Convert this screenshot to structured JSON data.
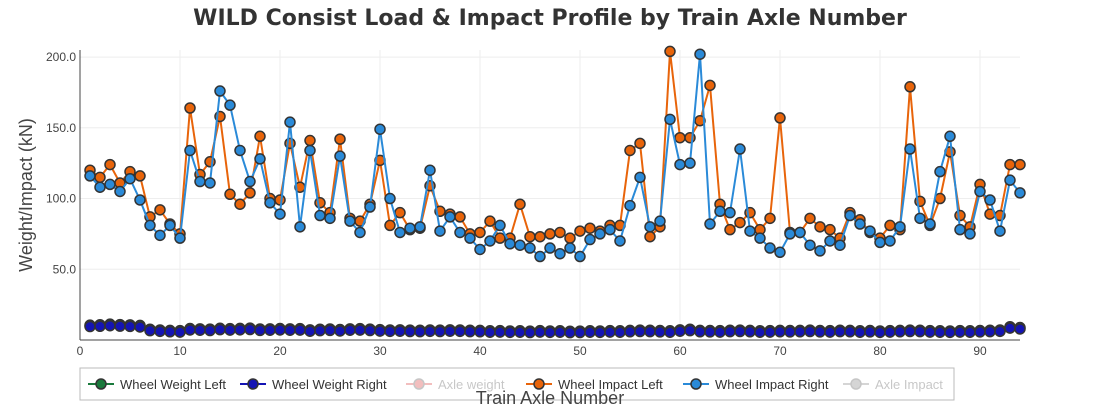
{
  "chart_data": {
    "type": "line",
    "title": "WILD Consist Load & Impact Profile by Train Axle Number",
    "xlabel": "Train Axle Number",
    "ylabel": "Weight/Impact (kN)",
    "xlim": [
      0,
      94
    ],
    "ylim": [
      0,
      205
    ],
    "x_ticks": [
      "0",
      "10",
      "20",
      "30",
      "40",
      "50",
      "60",
      "70",
      "80",
      "90"
    ],
    "y_ticks": [
      "50.0",
      "100.0",
      "150.0",
      "200.0"
    ],
    "grid": true,
    "legend_position": "bottom",
    "series": [
      {
        "name": "Wheel Weight Left",
        "color": "#1a7a3c",
        "visible": true,
        "values": [
          10.5,
          10.8,
          11.2,
          10.9,
          10.7,
          10.3,
          7.6,
          7.1,
          6.8,
          6.6,
          8.1,
          7.9,
          7.7,
          8.3,
          8.0,
          8.2,
          8.4,
          7.8,
          7.9,
          8.1,
          7.9,
          8.0,
          7.2,
          7.6,
          7.8,
          7.4,
          7.9,
          8.0,
          7.7,
          7.3,
          7.1,
          7.2,
          7.0,
          6.9,
          7.1,
          7.0,
          7.2,
          7.1,
          6.9,
          6.8,
          6.5,
          6.6,
          6.4,
          6.5,
          6.3,
          6.6,
          6.4,
          6.5,
          6.2,
          6.3,
          6.5,
          6.4,
          6.6,
          6.5,
          6.8,
          7.0,
          6.9,
          6.7,
          6.5,
          7.2,
          7.6,
          6.8,
          6.7,
          6.6,
          6.9,
          7.0,
          6.8,
          6.5,
          6.6,
          6.8,
          6.7,
          6.8,
          7.0,
          6.7,
          6.6,
          6.9,
          6.8,
          6.5,
          6.7,
          6.4,
          6.6,
          6.8,
          7.0,
          6.9,
          6.6,
          6.5,
          6.4,
          6.6,
          6.5,
          6.7,
          6.9,
          7.1,
          9.4,
          8.8
        ]
      },
      {
        "name": "Wheel Weight Right",
        "color": "#1414b4",
        "visible": true,
        "values": [
          9.5,
          9.7,
          10.1,
          9.8,
          9.6,
          9.2,
          6.6,
          6.1,
          5.8,
          5.6,
          7.1,
          6.9,
          6.7,
          7.3,
          7.0,
          7.2,
          7.4,
          6.8,
          6.9,
          7.1,
          6.9,
          7.0,
          6.2,
          6.6,
          6.8,
          6.4,
          6.9,
          7.0,
          6.7,
          6.3,
          6.1,
          6.2,
          6.0,
          5.9,
          6.1,
          6.0,
          6.2,
          6.1,
          5.9,
          5.8,
          5.5,
          5.6,
          5.4,
          5.5,
          5.3,
          5.6,
          5.4,
          5.5,
          5.2,
          5.3,
          5.5,
          5.4,
          5.6,
          5.5,
          5.8,
          6.0,
          5.9,
          5.7,
          5.5,
          6.2,
          6.6,
          5.8,
          5.7,
          5.6,
          5.9,
          6.0,
          5.8,
          5.5,
          5.6,
          5.8,
          5.7,
          5.8,
          6.0,
          5.7,
          5.6,
          5.9,
          5.8,
          5.5,
          5.7,
          5.4,
          5.6,
          5.8,
          6.0,
          5.9,
          5.6,
          5.5,
          5.4,
          5.6,
          5.5,
          5.7,
          5.9,
          6.1,
          8.4,
          7.8
        ]
      },
      {
        "name": "Axle weight",
        "color": "#e88a8a",
        "visible": false,
        "values": []
      },
      {
        "name": "Wheel Impact Left",
        "color": "#e8640a",
        "visible": true,
        "values": [
          120,
          115,
          124,
          111,
          119,
          116,
          87,
          92,
          82,
          75,
          164,
          117,
          126,
          158,
          103,
          96,
          104,
          144,
          100,
          99,
          139,
          108,
          141,
          97,
          90,
          142,
          86,
          84,
          96,
          127,
          81,
          90,
          78,
          79,
          109,
          91,
          89,
          87,
          75,
          76,
          84,
          72,
          72,
          96,
          73,
          73,
          75,
          76,
          72,
          77,
          79,
          77,
          81,
          81,
          134,
          139,
          73,
          80,
          204,
          143,
          143,
          155,
          180,
          96,
          78,
          83,
          90,
          78,
          86,
          157,
          76,
          76,
          86,
          80,
          78,
          72,
          90,
          85,
          76,
          72,
          81,
          78,
          179,
          98,
          81,
          100,
          133,
          88,
          80,
          110,
          89,
          88,
          124,
          124
        ]
      },
      {
        "name": "Wheel Impact Right",
        "color": "#2a8ad8",
        "visible": true,
        "values": [
          116,
          108,
          110,
          105,
          114,
          99,
          81,
          74,
          81,
          72,
          134,
          112,
          111,
          176,
          166,
          134,
          112,
          128,
          97,
          89,
          154,
          80,
          134,
          88,
          86,
          130,
          84,
          76,
          94,
          149,
          100,
          76,
          79,
          80,
          120,
          77,
          87,
          76,
          72,
          64,
          70,
          81,
          68,
          67,
          65,
          59,
          65,
          61,
          65,
          59,
          71,
          75,
          78,
          70,
          95,
          115,
          80,
          84,
          156,
          124,
          125,
          202,
          82,
          91,
          90,
          135,
          77,
          72,
          65,
          62,
          75,
          76,
          67,
          63,
          70,
          67,
          88,
          82,
          77,
          69,
          70,
          80,
          135,
          86,
          82,
          119,
          144,
          78,
          75,
          105,
          99,
          77,
          113,
          104
        ]
      },
      {
        "name": "Axle Impact",
        "color": "#b4b4b4",
        "visible": false,
        "values": []
      }
    ]
  }
}
